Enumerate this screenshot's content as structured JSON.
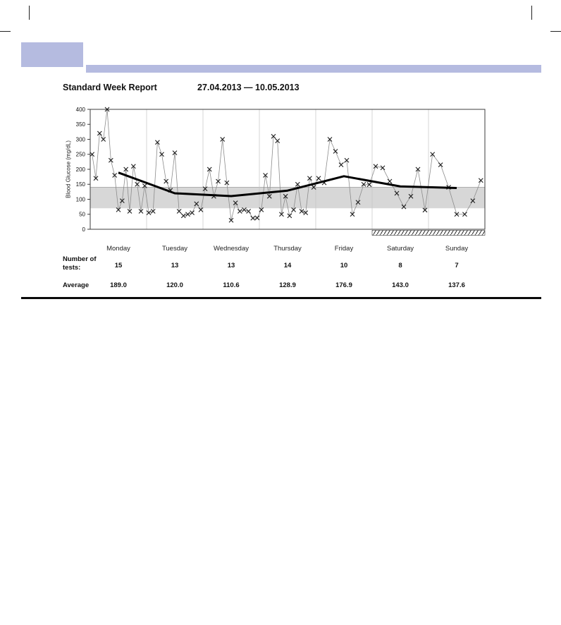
{
  "report": {
    "title": "Standard Week Report",
    "date_range": "27.04.2013 — 10.05.2013",
    "accent_color": "#b5bbe0"
  },
  "chart_data": {
    "type": "scatter",
    "title": "Standard Week Report",
    "xlabel": "",
    "ylabel": "Blood Glucose (mg/dL)",
    "ylim": [
      0,
      400
    ],
    "yticks": [
      0,
      50,
      100,
      150,
      200,
      250,
      300,
      350,
      400
    ],
    "target_range": [
      70,
      140
    ],
    "grid": "vertical-day-separators",
    "legend": "none",
    "days": [
      "Monday",
      "Tuesday",
      "Wednesday",
      "Thursday",
      "Friday",
      "Saturday",
      "Sunday"
    ],
    "series": [
      {
        "day": "Monday",
        "values": [
          250,
          170,
          320,
          300,
          400,
          230,
          180,
          65,
          95,
          200,
          60,
          210,
          150,
          60,
          145
        ]
      },
      {
        "day": "Tuesday",
        "values": [
          55,
          60,
          290,
          250,
          160,
          130,
          255,
          60,
          45,
          50,
          55,
          85,
          65
        ]
      },
      {
        "day": "Wednesday",
        "values": [
          135,
          200,
          110,
          160,
          300,
          155,
          30,
          88,
          60,
          65,
          60,
          37,
          38
        ]
      },
      {
        "day": "Thursday",
        "values": [
          65,
          180,
          110,
          310,
          295,
          50,
          110,
          45,
          65,
          150,
          60,
          55,
          170,
          140
        ]
      },
      {
        "day": "Friday",
        "values": [
          170,
          155,
          300,
          260,
          215,
          230,
          50,
          90,
          150,
          149
        ]
      },
      {
        "day": "Saturday",
        "values": [
          210,
          205,
          160,
          120,
          75,
          110,
          200,
          64
        ]
      },
      {
        "day": "Sunday",
        "values": [
          250,
          215,
          140,
          50,
          50,
          95,
          163
        ]
      }
    ],
    "daily_average": [
      189.0,
      120.0,
      110.6,
      128.9,
      176.9,
      143.0,
      137.6
    ],
    "weekend_hatch_days": [
      "Saturday",
      "Sunday"
    ]
  },
  "table": {
    "tests_label_line1": "Number of",
    "tests_label_line2": "tests:",
    "tests": [
      "15",
      "13",
      "13",
      "14",
      "10",
      "8",
      "7"
    ],
    "average_label": "Average",
    "averages": [
      "189.0",
      "120.0",
      "110.6",
      "128.9",
      "176.9",
      "143.0",
      "137.6"
    ]
  }
}
